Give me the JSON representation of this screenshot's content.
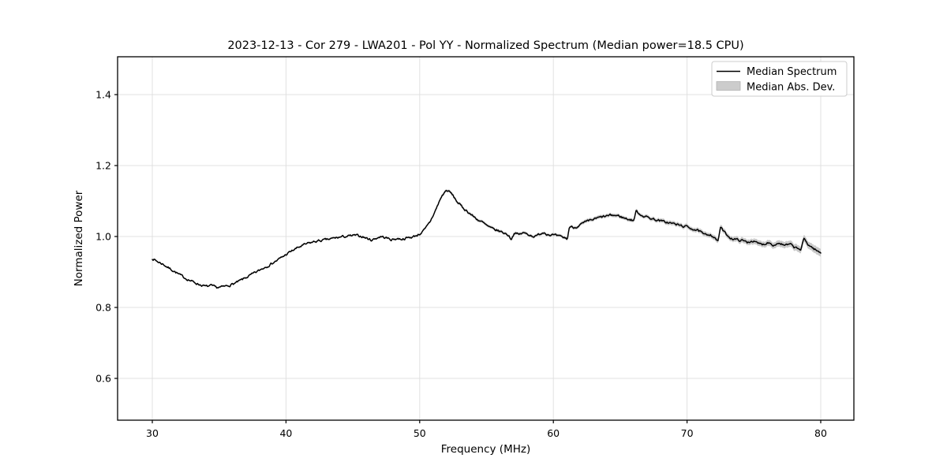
{
  "figure": {
    "background": "#ffffff"
  },
  "chart_data": {
    "type": "line",
    "title": "2023-12-13 - Cor 279 - LWA201 - Pol YY - Normalized Spectrum (Median power=18.5 CPU)",
    "xlabel": "Frequency (MHz)",
    "ylabel": "Normalized Power",
    "x_ticks": [
      30,
      40,
      50,
      60,
      70,
      80
    ],
    "y_ticks": [
      0.6,
      0.8,
      1.0,
      1.2,
      1.4
    ],
    "xlim": [
      27.4,
      82.5
    ],
    "ylim": [
      0.482,
      1.507
    ],
    "grid": true,
    "grid_color": "#e0e0e0",
    "line_color": "#000000",
    "band_color": "#c9c9c9",
    "noise_amplitude": 0.0028,
    "legend": {
      "position": "upper right",
      "items": [
        "Median Spectrum",
        "Median Abs. Dev."
      ]
    },
    "series": [
      {
        "name": "Median Spectrum",
        "comment": "points are [frequency_MHz, normalized_power, median_abs_dev]; band = value ± mad",
        "points": [
          [
            30.0,
            0.938,
            0.0025
          ],
          [
            30.4,
            0.929,
            0.0025
          ],
          [
            30.8,
            0.922,
            0.0025
          ],
          [
            31.2,
            0.912,
            0.0025
          ],
          [
            31.6,
            0.903,
            0.0025
          ],
          [
            32.0,
            0.893,
            0.0025
          ],
          [
            32.5,
            0.882,
            0.0025
          ],
          [
            33.0,
            0.873,
            0.0025
          ],
          [
            33.5,
            0.865,
            0.0025
          ],
          [
            34.0,
            0.859,
            0.0025
          ],
          [
            34.4,
            0.861,
            0.0025
          ],
          [
            34.8,
            0.856,
            0.0025
          ],
          [
            35.3,
            0.858,
            0.0025
          ],
          [
            35.8,
            0.863,
            0.0025
          ],
          [
            36.3,
            0.87,
            0.0025
          ],
          [
            36.8,
            0.88,
            0.0025
          ],
          [
            37.3,
            0.89,
            0.0025
          ],
          [
            37.8,
            0.9,
            0.0025
          ],
          [
            38.3,
            0.911,
            0.0025
          ],
          [
            38.8,
            0.921,
            0.0025
          ],
          [
            39.3,
            0.932,
            0.0025
          ],
          [
            39.8,
            0.944,
            0.0025
          ],
          [
            40.2,
            0.954,
            0.0025
          ],
          [
            40.7,
            0.965,
            0.0025
          ],
          [
            41.2,
            0.974,
            0.0025
          ],
          [
            41.7,
            0.981,
            0.0025
          ],
          [
            42.2,
            0.986,
            0.0025
          ],
          [
            42.7,
            0.989,
            0.0025
          ],
          [
            43.2,
            0.992,
            0.0025
          ],
          [
            43.7,
            0.996,
            0.0025
          ],
          [
            44.2,
            0.999,
            0.0025
          ],
          [
            44.7,
            1.001,
            0.0025
          ],
          [
            45.2,
            1.003,
            0.0025
          ],
          [
            45.7,
            1.0,
            0.0025
          ],
          [
            46.1,
            0.994,
            0.0025
          ],
          [
            46.4,
            0.99,
            0.0025
          ],
          [
            46.8,
            0.996,
            0.0025
          ],
          [
            47.1,
            1.0,
            0.0025
          ],
          [
            47.5,
            0.996,
            0.0025
          ],
          [
            47.9,
            0.991,
            0.0025
          ],
          [
            48.3,
            0.994,
            0.0025
          ],
          [
            48.7,
            0.993,
            0.0025
          ],
          [
            49.1,
            0.996,
            0.0025
          ],
          [
            49.5,
            0.999,
            0.0025
          ],
          [
            50.0,
            1.007,
            0.003
          ],
          [
            50.4,
            1.02,
            0.003
          ],
          [
            50.8,
            1.043,
            0.003
          ],
          [
            51.2,
            1.075,
            0.0035
          ],
          [
            51.6,
            1.11,
            0.004
          ],
          [
            51.9,
            1.127,
            0.004
          ],
          [
            52.1,
            1.13,
            0.004
          ],
          [
            52.4,
            1.12,
            0.004
          ],
          [
            52.8,
            1.098,
            0.004
          ],
          [
            53.2,
            1.082,
            0.004
          ],
          [
            53.6,
            1.07,
            0.004
          ],
          [
            54.0,
            1.057,
            0.004
          ],
          [
            54.4,
            1.046,
            0.004
          ],
          [
            54.7,
            1.04,
            0.004
          ],
          [
            55.0,
            1.031,
            0.004
          ],
          [
            55.4,
            1.022,
            0.004
          ],
          [
            55.8,
            1.017,
            0.004
          ],
          [
            56.2,
            1.012,
            0.004
          ],
          [
            56.6,
            1.005,
            0.004
          ],
          [
            56.85,
            0.993,
            0.004
          ],
          [
            57.1,
            1.011,
            0.004
          ],
          [
            57.4,
            1.005,
            0.004
          ],
          [
            57.7,
            1.01,
            0.004
          ],
          [
            58.0,
            1.008,
            0.004
          ],
          [
            58.4,
            1.002,
            0.004
          ],
          [
            58.7,
            1.0,
            0.004
          ],
          [
            59.0,
            1.008,
            0.004
          ],
          [
            59.3,
            1.012,
            0.004
          ],
          [
            59.6,
            1.006,
            0.004
          ],
          [
            60.0,
            1.004,
            0.004
          ],
          [
            60.4,
            1.0,
            0.004
          ],
          [
            60.8,
            0.997,
            0.004
          ],
          [
            61.05,
            0.993,
            0.004
          ],
          [
            61.2,
            1.028,
            0.004
          ],
          [
            61.6,
            1.025,
            0.0045
          ],
          [
            62.0,
            1.033,
            0.0045
          ],
          [
            62.4,
            1.04,
            0.005
          ],
          [
            62.9,
            1.047,
            0.005
          ],
          [
            63.4,
            1.053,
            0.005
          ],
          [
            63.9,
            1.057,
            0.005
          ],
          [
            64.4,
            1.06,
            0.005
          ],
          [
            64.9,
            1.058,
            0.005
          ],
          [
            65.3,
            1.052,
            0.005
          ],
          [
            65.7,
            1.048,
            0.005
          ],
          [
            66.0,
            1.045,
            0.005
          ],
          [
            66.2,
            1.072,
            0.005
          ],
          [
            66.5,
            1.062,
            0.005
          ],
          [
            66.9,
            1.056,
            0.005
          ],
          [
            67.3,
            1.051,
            0.0055
          ],
          [
            67.7,
            1.047,
            0.0055
          ],
          [
            68.1,
            1.043,
            0.0055
          ],
          [
            68.5,
            1.04,
            0.006
          ],
          [
            69.0,
            1.036,
            0.006
          ],
          [
            69.5,
            1.031,
            0.006
          ],
          [
            70.0,
            1.027,
            0.006
          ],
          [
            70.5,
            1.021,
            0.006
          ],
          [
            71.0,
            1.013,
            0.0065
          ],
          [
            71.3,
            1.004,
            0.0065
          ],
          [
            71.7,
            1.007,
            0.0065
          ],
          [
            72.0,
            0.999,
            0.007
          ],
          [
            72.3,
            0.985,
            0.007
          ],
          [
            72.5,
            1.026,
            0.007
          ],
          [
            72.9,
            1.007,
            0.007
          ],
          [
            73.3,
            0.995,
            0.007
          ],
          [
            73.7,
            0.991,
            0.0075
          ],
          [
            74.1,
            0.989,
            0.0075
          ],
          [
            74.5,
            0.984,
            0.0075
          ],
          [
            74.9,
            0.988,
            0.008
          ],
          [
            75.3,
            0.98,
            0.008
          ],
          [
            75.7,
            0.978,
            0.008
          ],
          [
            76.1,
            0.984,
            0.0085
          ],
          [
            76.5,
            0.976,
            0.0085
          ],
          [
            76.9,
            0.982,
            0.009
          ],
          [
            77.3,
            0.974,
            0.009
          ],
          [
            77.7,
            0.978,
            0.009
          ],
          [
            78.1,
            0.968,
            0.0095
          ],
          [
            78.5,
            0.963,
            0.0095
          ],
          [
            78.75,
            0.993,
            0.01
          ],
          [
            79.1,
            0.976,
            0.01
          ],
          [
            79.4,
            0.968,
            0.0105
          ],
          [
            79.7,
            0.96,
            0.011
          ],
          [
            80.05,
            0.952,
            0.011
          ]
        ]
      }
    ]
  }
}
